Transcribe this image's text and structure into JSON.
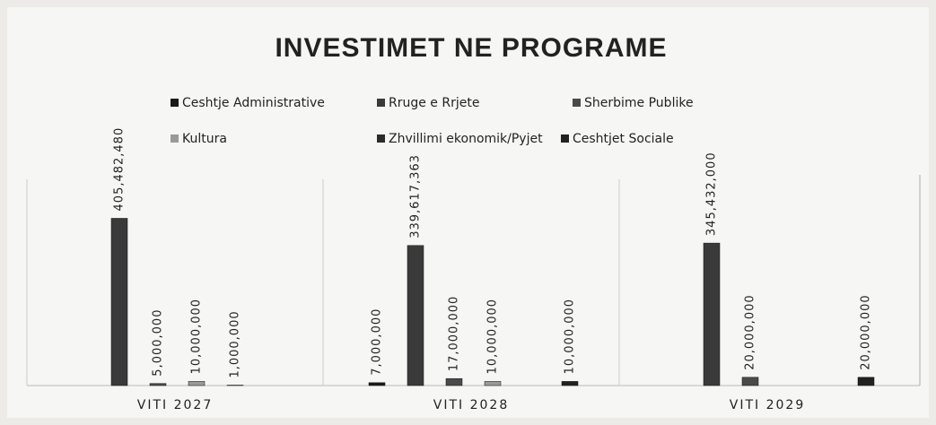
{
  "chart_data": {
    "type": "bar",
    "title": "INVESTIMET NE PROGRAME",
    "categories": [
      "VITI 2027",
      "VITI 2028",
      "VITI 2029"
    ],
    "series": [
      {
        "name": "Ceshtje Administrative",
        "color": "#1a1a1a",
        "values": [
          null,
          7000000,
          null
        ],
        "value_labels": [
          null,
          "7,000,000",
          null
        ]
      },
      {
        "name": "Rruge e Rrjete",
        "color": "#3a3a3a",
        "values": [
          405482480,
          339617363,
          345432000
        ],
        "value_labels": [
          "405,482,480",
          "339,617,363",
          "345,432,000"
        ]
      },
      {
        "name": "Sherbime Publike",
        "color": "#4a4a4a",
        "values": [
          5000000,
          17000000,
          20000000
        ],
        "value_labels": [
          "5,000,000",
          "17,000,000",
          "20,000,000"
        ]
      },
      {
        "name": "Kultura",
        "color": "#9a9a9a",
        "values": [
          10000000,
          10000000,
          null
        ],
        "value_labels": [
          "10,000,000",
          "10,000,000",
          null
        ]
      },
      {
        "name": "Zhvillimi ekonomik/Pyjet",
        "color": "#2b2b2b",
        "values": [
          1000000,
          null,
          null
        ],
        "value_labels": [
          "1,000,000",
          null,
          null
        ]
      },
      {
        "name": "Ceshtjet Sociale",
        "color": "#222222",
        "values": [
          null,
          10000000,
          20000000
        ],
        "value_labels": [
          null,
          "10,000,000",
          "20,000,000"
        ]
      }
    ],
    "ylim": [
      0,
      500000000
    ]
  }
}
